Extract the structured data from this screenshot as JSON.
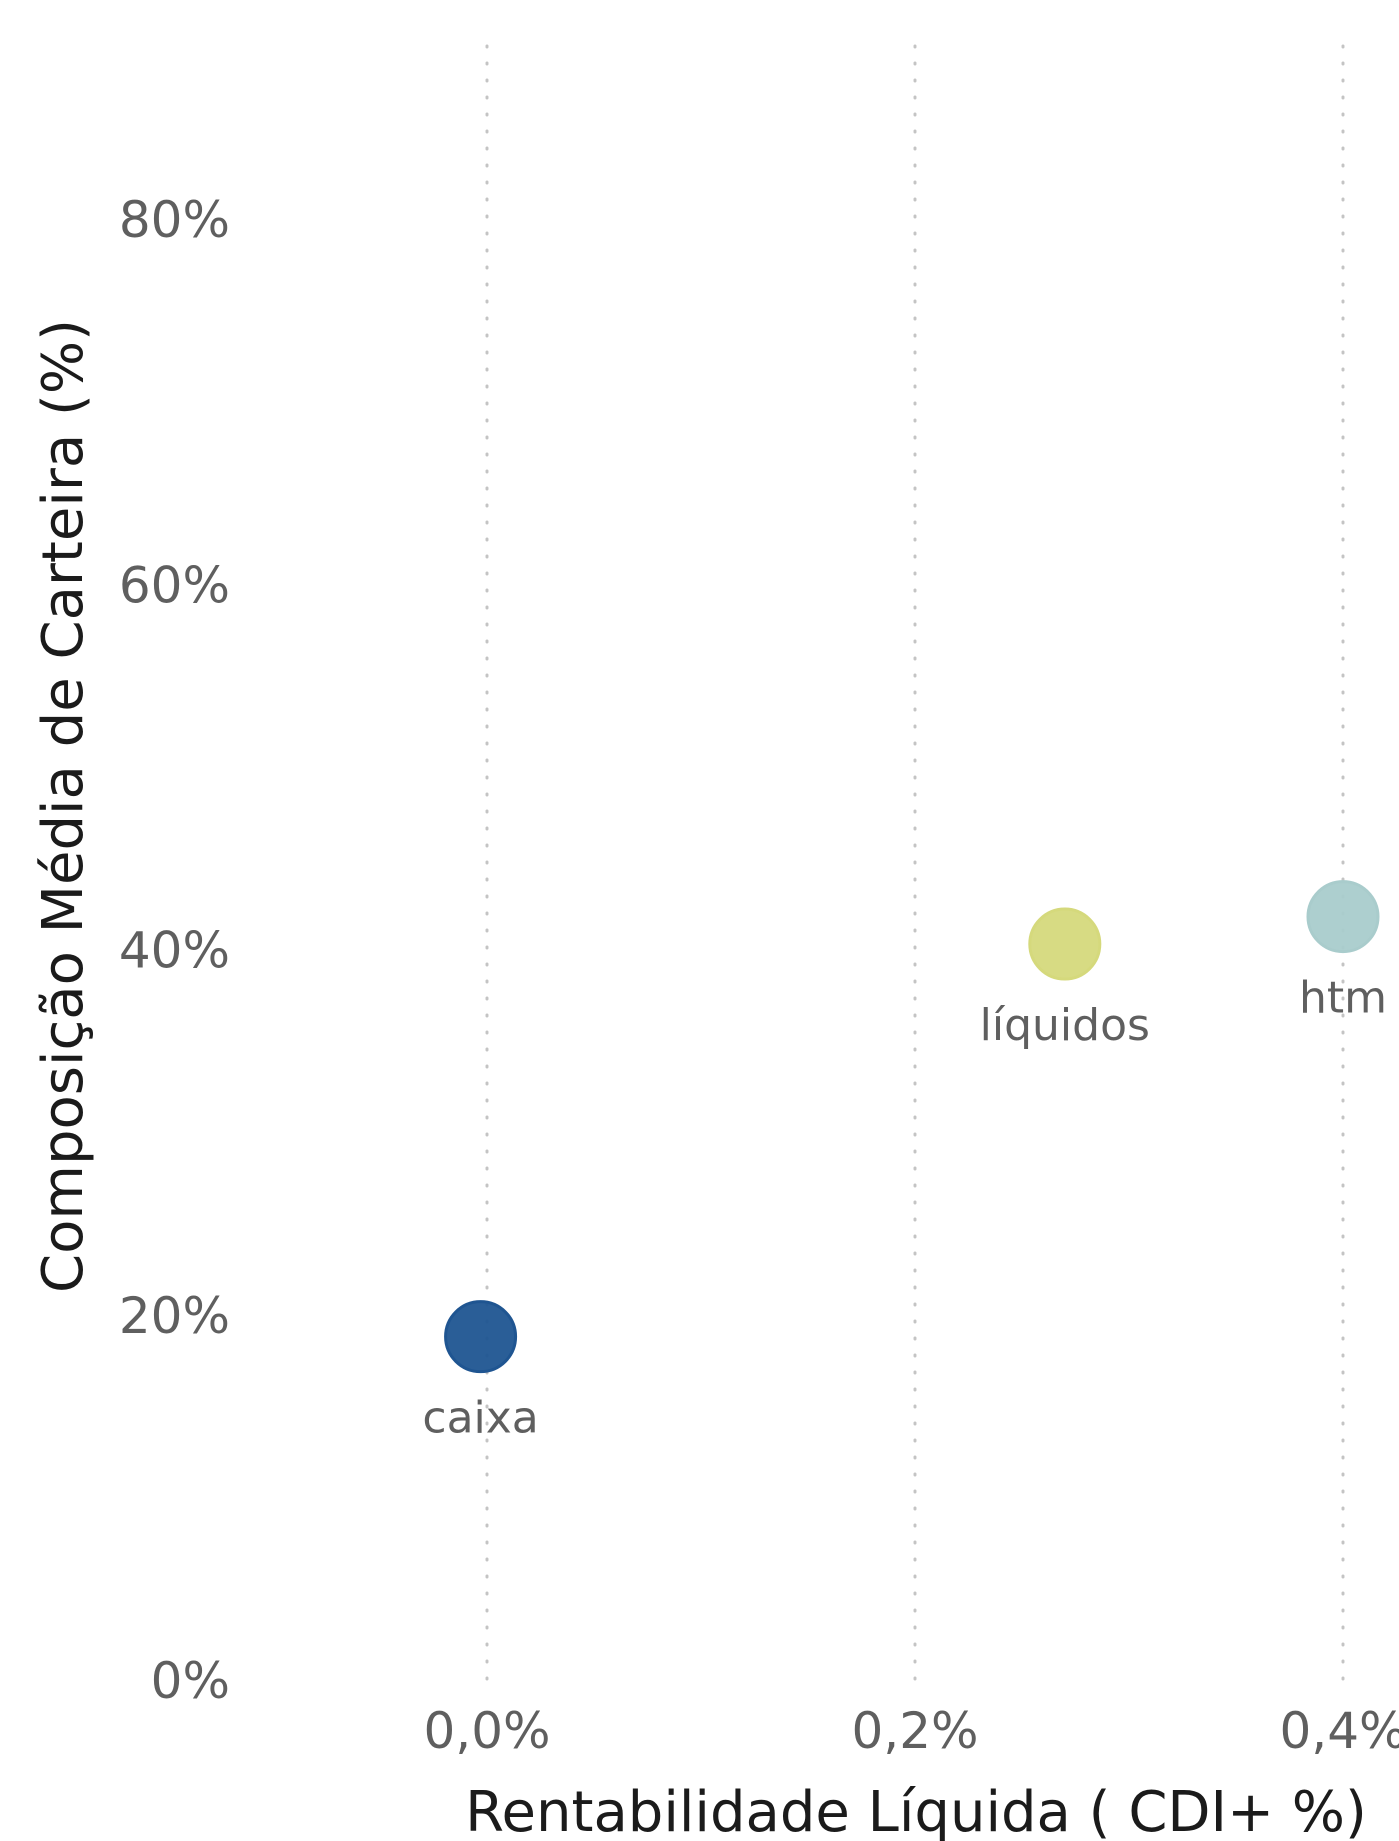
{
  "chart_data": {
    "type": "scatter",
    "xlabel": "Rentabilidade Líquida ( CDI+ %)",
    "ylabel": "Composição Média de Carteira (%)",
    "xlim": [
      -0.0022,
      0.0043
    ],
    "ylim": [
      0,
      0.8
    ],
    "x_ticks": [
      {
        "value": 0.0,
        "label": "0,0%"
      },
      {
        "value": 0.002,
        "label": "0,2%"
      },
      {
        "value": 0.004,
        "label": "0,4%"
      }
    ],
    "y_ticks": [
      {
        "value": 0.0,
        "label": "0%"
      },
      {
        "value": 0.2,
        "label": "20%"
      },
      {
        "value": 0.4,
        "label": "40%"
      },
      {
        "value": 0.6,
        "label": "60%"
      },
      {
        "value": 0.8,
        "label": "80%"
      }
    ],
    "vertical_grid": true,
    "horizontal_grid": false,
    "points": [
      {
        "label": "caixa",
        "x": -3e-05,
        "y": 0.188,
        "color": "#1f5591"
      },
      {
        "label": "líquidos",
        "x": 0.0027,
        "y": 0.403,
        "color": "#d5d97c"
      },
      {
        "label": "htm",
        "x": 0.004,
        "y": 0.418,
        "color": "#a9cccc"
      }
    ]
  }
}
